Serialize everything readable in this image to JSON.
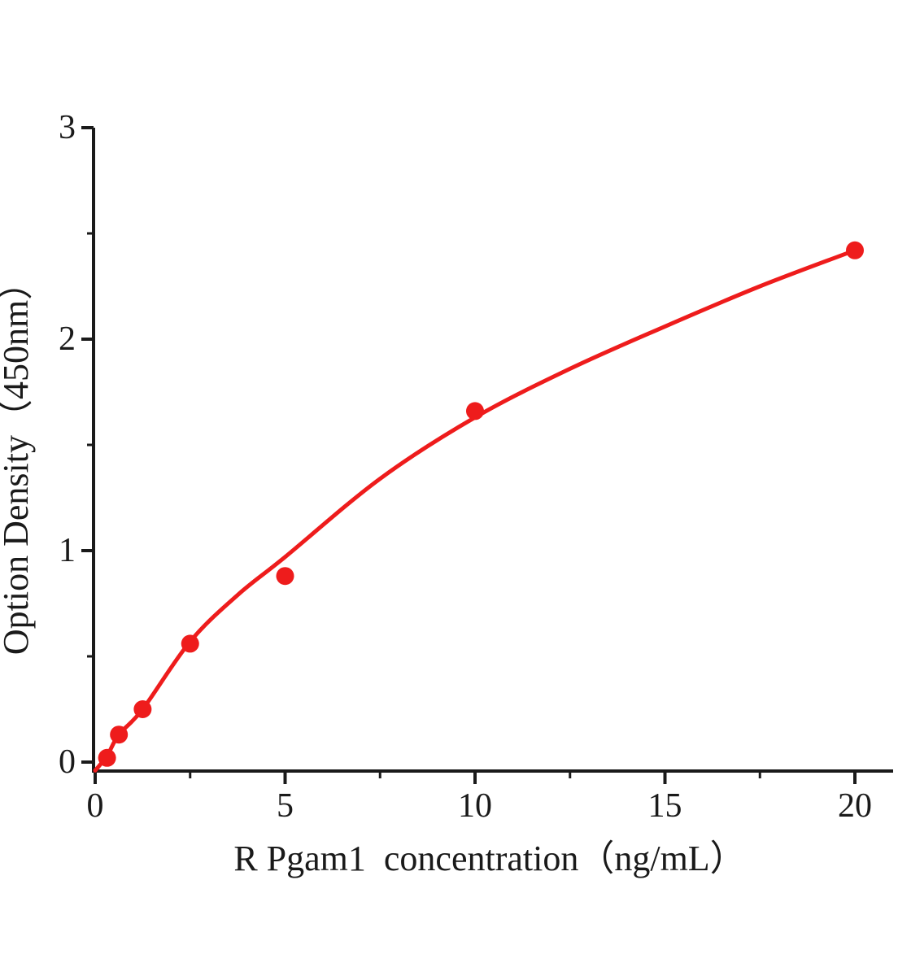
{
  "page": {
    "background_color": "#ffffff"
  },
  "chart_data": {
    "type": "scatter",
    "title": "",
    "xlabel": "R Pgam1  concentration（ng/mL）",
    "ylabel": "Option Density（450nm）",
    "x": [
      0.313,
      0.625,
      1.25,
      2.5,
      5,
      10,
      20
    ],
    "y": [
      0.02,
      0.13,
      0.25,
      0.56,
      0.88,
      1.66,
      2.42
    ],
    "fit_curve": {
      "x": [
        0,
        0.313,
        0.625,
        1.25,
        2.5,
        3.75,
        5,
        7.5,
        10,
        12.5,
        15,
        17.5,
        20
      ],
      "y": [
        -0.04,
        0.03,
        0.13,
        0.25,
        0.57,
        0.79,
        0.97,
        1.34,
        1.63,
        1.86,
        2.06,
        2.25,
        2.42
      ]
    },
    "xlim": [
      0,
      21
    ],
    "ylim": [
      0,
      3
    ],
    "x_ticks": {
      "major": [
        0,
        5,
        10,
        15,
        20
      ],
      "major_labels": [
        "0",
        "5",
        "10",
        "15",
        "20"
      ],
      "minor": [
        2.5,
        7.5,
        12.5,
        17.5
      ]
    },
    "y_ticks": {
      "major": [
        0,
        1,
        2,
        3
      ],
      "major_labels": [
        "0",
        "1",
        "2",
        "3"
      ],
      "minor": [
        0.5,
        1.5,
        2.5
      ]
    },
    "grid": false,
    "legend": "none",
    "marker": {
      "shape": "circle",
      "radius_px": 11
    },
    "colors": {
      "curve": "#ee1c1c",
      "marker": "#ee1c1c",
      "axis": "#1a1a1a",
      "text": "#1a1a1a"
    }
  }
}
